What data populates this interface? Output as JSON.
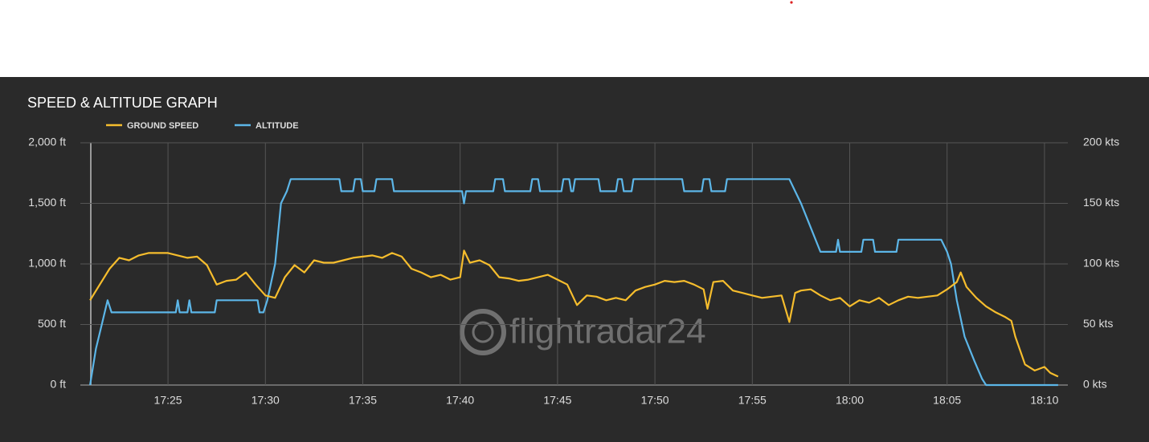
{
  "chart_data": {
    "type": "line",
    "title": "SPEED & ALTITUDE GRAPH",
    "watermark": "flightradar24",
    "xlim": [
      1040.5,
      1091.2
    ],
    "xticks": [
      {
        "value": 1045,
        "label": "17:25"
      },
      {
        "value": 1050,
        "label": "17:30"
      },
      {
        "value": 1055,
        "label": "17:35"
      },
      {
        "value": 1060,
        "label": "17:40"
      },
      {
        "value": 1065,
        "label": "17:45"
      },
      {
        "value": 1070,
        "label": "17:50"
      },
      {
        "value": 1075,
        "label": "17:55"
      },
      {
        "value": 1080,
        "label": "18:00"
      },
      {
        "value": 1085,
        "label": "18:05"
      },
      {
        "value": 1090,
        "label": "18:10"
      }
    ],
    "ylim": [
      0,
      2000
    ],
    "yticks": [
      {
        "value": 0,
        "label": "0 ft"
      },
      {
        "value": 500,
        "label": "500 ft"
      },
      {
        "value": 1000,
        "label": "1,000 ft"
      },
      {
        "value": 1500,
        "label": "1,500 ft"
      },
      {
        "value": 2000,
        "label": "2,000 ft"
      }
    ],
    "y2lim": [
      0,
      200
    ],
    "y2ticks": [
      {
        "value": 0,
        "label": "0 kts"
      },
      {
        "value": 50,
        "label": "50 kts"
      },
      {
        "value": 100,
        "label": "100 kts"
      },
      {
        "value": 150,
        "label": "150 kts"
      },
      {
        "value": 200,
        "label": "200 kts"
      }
    ],
    "grid": true,
    "series": [
      {
        "name": "GROUND SPEED",
        "color": "#f6bd2d",
        "axis": "y2",
        "x": [
          1041.0,
          1041.5,
          1042.0,
          1042.5,
          1043.0,
          1043.5,
          1044.0,
          1044.5,
          1045.0,
          1045.5,
          1046.0,
          1046.5,
          1047.0,
          1047.5,
          1048.0,
          1048.5,
          1049.0,
          1049.5,
          1050.0,
          1050.5,
          1051.0,
          1051.5,
          1052.0,
          1052.5,
          1053.0,
          1053.5,
          1054.0,
          1054.5,
          1055.0,
          1055.5,
          1056.0,
          1056.5,
          1057.0,
          1057.5,
          1058.0,
          1058.5,
          1059.0,
          1059.5,
          1060.0,
          1060.2,
          1060.5,
          1061.0,
          1061.5,
          1062.0,
          1062.5,
          1063.0,
          1063.5,
          1064.0,
          1064.5,
          1065.0,
          1065.5,
          1066.0,
          1066.5,
          1067.0,
          1067.5,
          1068.0,
          1068.5,
          1069.0,
          1069.5,
          1070.0,
          1070.5,
          1071.0,
          1071.5,
          1072.0,
          1072.5,
          1072.7,
          1073.0,
          1073.5,
          1074.0,
          1074.5,
          1075.0,
          1075.5,
          1076.0,
          1076.5,
          1076.9,
          1077.2,
          1077.5,
          1078.0,
          1078.5,
          1079.0,
          1079.5,
          1080.0,
          1080.5,
          1081.0,
          1081.5,
          1082.0,
          1082.5,
          1083.0,
          1083.5,
          1084.0,
          1084.5,
          1085.0,
          1085.5,
          1085.7,
          1086.0,
          1086.5,
          1087.0,
          1087.5,
          1088.0,
          1088.3,
          1088.5,
          1089.0,
          1089.5,
          1090.0,
          1090.3,
          1090.7
        ],
        "values": [
          70,
          83,
          96,
          105,
          103,
          107,
          109,
          109,
          109,
          107,
          105,
          106,
          99,
          83,
          86,
          87,
          93,
          83,
          74,
          72,
          89,
          99,
          93,
          103,
          101,
          101,
          103,
          105,
          106,
          107,
          105,
          109,
          106,
          96,
          93,
          89,
          91,
          87,
          89,
          111,
          101,
          103,
          99,
          89,
          88,
          86,
          87,
          89,
          91,
          87,
          83,
          66,
          74,
          73,
          70,
          72,
          70,
          78,
          81,
          83,
          86,
          85,
          86,
          83,
          79,
          63,
          85,
          86,
          78,
          76,
          74,
          72,
          73,
          74,
          52,
          76,
          78,
          79,
          74,
          70,
          72,
          65,
          70,
          68,
          72,
          66,
          70,
          73,
          72,
          73,
          74,
          79,
          85,
          93,
          81,
          72,
          65,
          60,
          56,
          53,
          40,
          17,
          12,
          15,
          10,
          7
        ]
      },
      {
        "name": "ALTITUDE",
        "color": "#5cb6e8",
        "x": [
          1041.0,
          1041.3,
          1041.6,
          1041.9,
          1042.1,
          1045.4,
          1045.5,
          1045.6,
          1046.0,
          1046.1,
          1046.2,
          1047.4,
          1047.5,
          1049.6,
          1049.7,
          1049.9,
          1050.1,
          1050.5,
          1050.8,
          1051.1,
          1051.3,
          1053.8,
          1053.9,
          1054.5,
          1054.6,
          1054.9,
          1055.0,
          1055.6,
          1055.7,
          1056.5,
          1056.6,
          1060.1,
          1060.2,
          1060.3,
          1061.7,
          1061.8,
          1062.2,
          1062.3,
          1063.6,
          1063.7,
          1064.0,
          1064.1,
          1065.2,
          1065.3,
          1065.6,
          1065.7,
          1065.8,
          1065.9,
          1067.1,
          1067.2,
          1068.0,
          1068.1,
          1068.3,
          1068.4,
          1068.8,
          1068.9,
          1071.4,
          1071.5,
          1072.4,
          1072.5,
          1072.8,
          1072.9,
          1073.6,
          1073.7,
          1076.9,
          1077.2,
          1077.5,
          1078.0,
          1078.5,
          1079.3,
          1079.4,
          1079.5,
          1080.6,
          1080.7,
          1081.2,
          1081.3,
          1082.4,
          1082.5,
          1084.7,
          1085.0,
          1085.2,
          1085.5,
          1085.9,
          1086.4,
          1086.8,
          1087.0,
          1090.7
        ],
        "values": [
          0,
          300,
          500,
          700,
          600,
          600,
          700,
          600,
          600,
          700,
          600,
          600,
          700,
          700,
          600,
          600,
          700,
          1000,
          1500,
          1600,
          1700,
          1700,
          1600,
          1600,
          1700,
          1700,
          1600,
          1600,
          1700,
          1700,
          1600,
          1600,
          1500,
          1600,
          1600,
          1700,
          1700,
          1600,
          1600,
          1700,
          1700,
          1600,
          1600,
          1700,
          1700,
          1600,
          1600,
          1700,
          1700,
          1600,
          1600,
          1700,
          1700,
          1600,
          1600,
          1700,
          1700,
          1600,
          1600,
          1700,
          1700,
          1600,
          1600,
          1700,
          1700,
          1600,
          1500,
          1300,
          1100,
          1100,
          1200,
          1100,
          1100,
          1200,
          1200,
          1100,
          1100,
          1200,
          1200,
          1100,
          1000,
          700,
          400,
          200,
          50,
          0,
          0
        ]
      }
    ]
  }
}
